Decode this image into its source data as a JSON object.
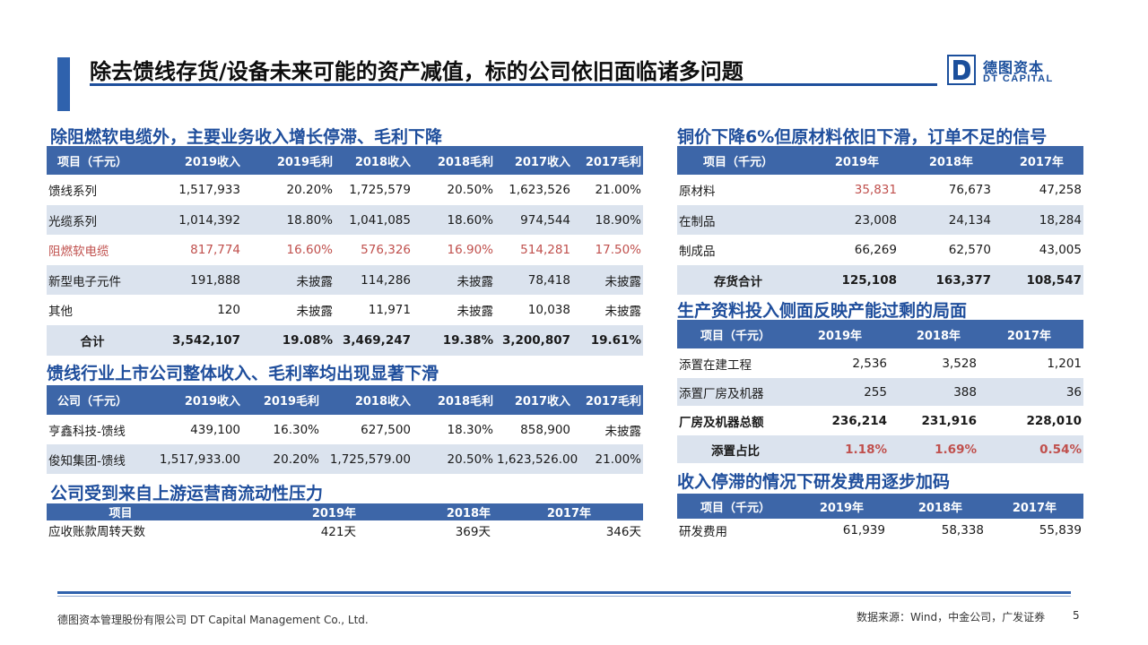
{
  "page": {
    "title": "除去馈线存货/设备未来可能的资产减值，标的公司依旧面临诸多问题",
    "number": "5"
  },
  "logo": {
    "cn": "德图资本",
    "en": "DT CAPITAL",
    "brand_color": "#1b4f9c"
  },
  "colors": {
    "header_bg": "#3d66a8",
    "row_alt": "#dbe3ee",
    "highlight_red": "#c0504d",
    "section_title": "#1f4e9c"
  },
  "revenue": {
    "section_title": "除阻燃软电缆外，主要业务收入增长停滞、毛利下降",
    "headers": [
      "项目（千元）",
      "2019收入",
      "2019毛利",
      "2018收入",
      "2018毛利",
      "2017收入",
      "2017毛利"
    ],
    "rows": [
      [
        "馈线系列",
        "1,517,933",
        "20.20%",
        "1,725,579",
        "20.50%",
        "1,623,526",
        "21.00%"
      ],
      [
        "光缆系列",
        "1,014,392",
        "18.80%",
        "1,041,085",
        "18.60%",
        "974,544",
        "18.90%"
      ],
      [
        "阻燃软电缆",
        "817,774",
        "16.60%",
        "576,326",
        "16.90%",
        "514,281",
        "17.50%"
      ],
      [
        "新型电子元件",
        "191,888",
        "未披露",
        "114,286",
        "未披露",
        "78,418",
        "未披露"
      ],
      [
        "其他",
        "120",
        "未披露",
        "11,971",
        "未披露",
        "10,038",
        "未披露"
      ],
      [
        "合计",
        "3,542,107",
        "19.08%",
        "3,469,247",
        "19.38%",
        "3,200,807",
        "19.61%"
      ]
    ]
  },
  "peers": {
    "section_title": "馈线行业上市公司整体收入、毛利率均出现显著下滑",
    "headers": [
      "公司（千元）",
      "2019收入",
      "2019毛利",
      "2018收入",
      "2018毛利",
      "2017收入",
      "2017毛利"
    ],
    "rows": [
      [
        "亨鑫科技-馈线",
        "439,100",
        "16.30%",
        "627,500",
        "18.30%",
        "858,900",
        "未披露"
      ],
      [
        "俊知集团-馈线",
        "1,517,933.00",
        "20.20%",
        "1,725,579.00",
        "20.50%",
        "1,623,526.00",
        "21.00%"
      ]
    ]
  },
  "receivables": {
    "section_title": "公司受到来自上游运营商流动性压力",
    "headers": [
      "项目",
      "2019年",
      "2018年",
      "2017年"
    ],
    "rows": [
      [
        "应收账款周转天数",
        "421天",
        "369天",
        "346天"
      ]
    ]
  },
  "inventory": {
    "section_title": "铜价下降6%但原材料依旧下滑，订单不足的信号",
    "headers": [
      "项目（千元）",
      "2019年",
      "2018年",
      "2017年"
    ],
    "rows": [
      [
        "原材料",
        "35,831",
        "76,673",
        "47,258"
      ],
      [
        "在制品",
        "23,008",
        "24,134",
        "18,284"
      ],
      [
        "制成品",
        "66,269",
        "62,570",
        "43,005"
      ],
      [
        "存货合计",
        "125,108",
        "163,377",
        "108,547"
      ]
    ]
  },
  "capex": {
    "section_title": "生产资料投入侧面反映产能过剩的局面",
    "headers": [
      "项目（千元）",
      "2019年",
      "2018年",
      "2017年"
    ],
    "rows": [
      [
        "添置在建工程",
        "2,536",
        "3,528",
        "1,201"
      ],
      [
        "添置厂房及机器",
        "255",
        "388",
        "36"
      ],
      [
        "厂房及机器总额",
        "236,214",
        "231,916",
        "228,010"
      ],
      [
        "添置占比",
        "1.18%",
        "1.69%",
        "0.54%"
      ]
    ]
  },
  "rnd": {
    "section_title": "收入停滞的情况下研发费用逐步加码",
    "headers": [
      "项目（千元）",
      "2019年",
      "2018年",
      "2017年"
    ],
    "rows": [
      [
        "研发费用",
        "61,939",
        "58,338",
        "55,839"
      ]
    ]
  },
  "footer": {
    "company": "德图资本管理股份有限公司  DT Capital Management Co., Ltd.",
    "source": "数据来源：Wind，中金公司，广发证券"
  }
}
